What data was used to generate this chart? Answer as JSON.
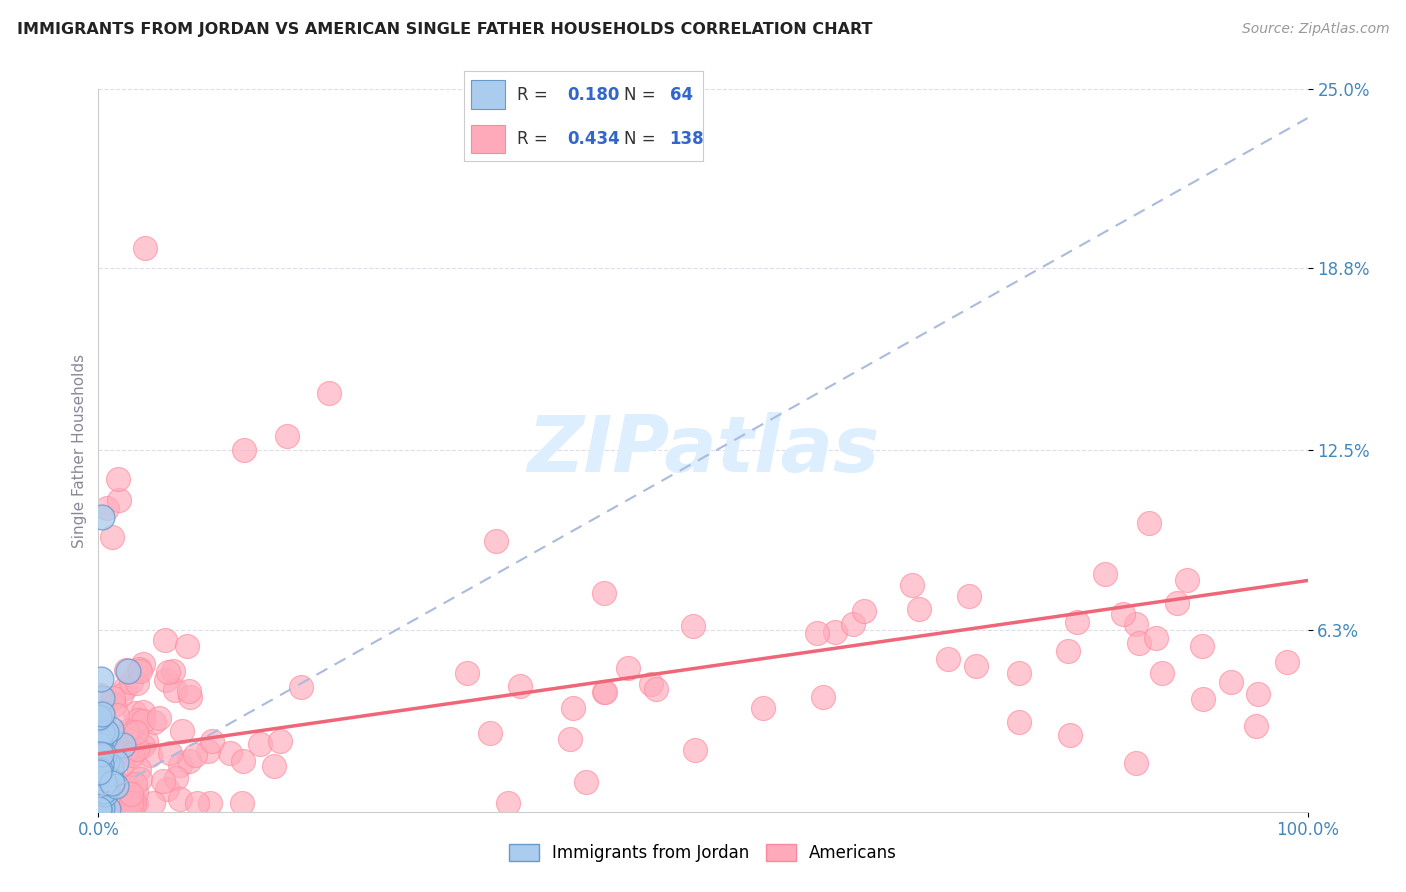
{
  "title": "IMMIGRANTS FROM JORDAN VS AMERICAN SINGLE FATHER HOUSEHOLDS CORRELATION CHART",
  "source_text": "Source: ZipAtlas.com",
  "ylabel": "Single Father Households",
  "watermark": "ZIPatlas",
  "r_jordan": 0.18,
  "n_jordan": 64,
  "r_americans": 0.434,
  "n_americans": 138,
  "xlim": [
    0.0,
    100.0
  ],
  "ylim": [
    0.0,
    25.0
  ],
  "yticks": [
    6.3,
    12.5,
    18.8,
    25.0
  ],
  "color_jordan_face": "#AACCEE",
  "color_jordan_edge": "#6699CC",
  "color_americans_face": "#FFAABB",
  "color_americans_edge": "#FF8899",
  "trend_jordan_color": "#AABBDD",
  "trend_americans_color": "#EE6677",
  "background_color": "#FFFFFF",
  "title_color": "#222222",
  "tick_label_color": "#4488BB",
  "legend_r_color": "#3366CC",
  "grid_color": "#DDDDEE",
  "watermark_color": "#DDEEFF"
}
